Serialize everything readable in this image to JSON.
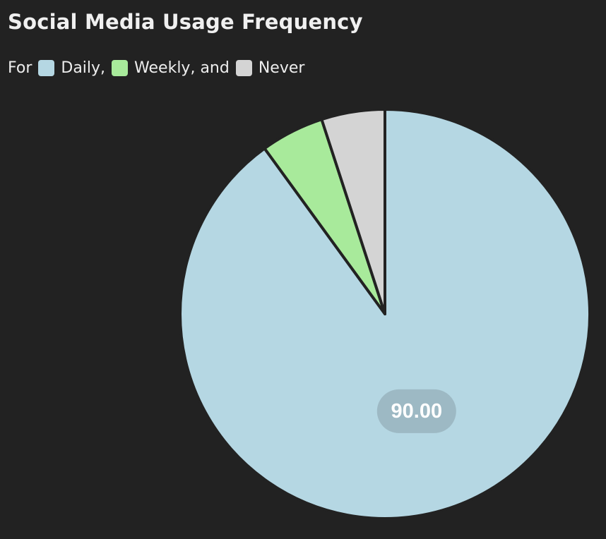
{
  "chart_data": {
    "type": "pie",
    "title": "Social Media Usage Frequency",
    "legend_prefix": "For",
    "legend_placement": "top-left",
    "categories": [
      "Daily",
      "Weekly",
      "Never"
    ],
    "legend_labels": [
      "Daily,",
      "Weekly, and",
      "Never"
    ],
    "values": [
      90,
      5,
      5
    ],
    "colors": [
      "#b5d7e3",
      "#a8ea9b",
      "#d4d4d4"
    ],
    "data_labels": [
      "90.00",
      "",
      ""
    ],
    "background": "#222222",
    "slice_border_color": "#222222"
  }
}
